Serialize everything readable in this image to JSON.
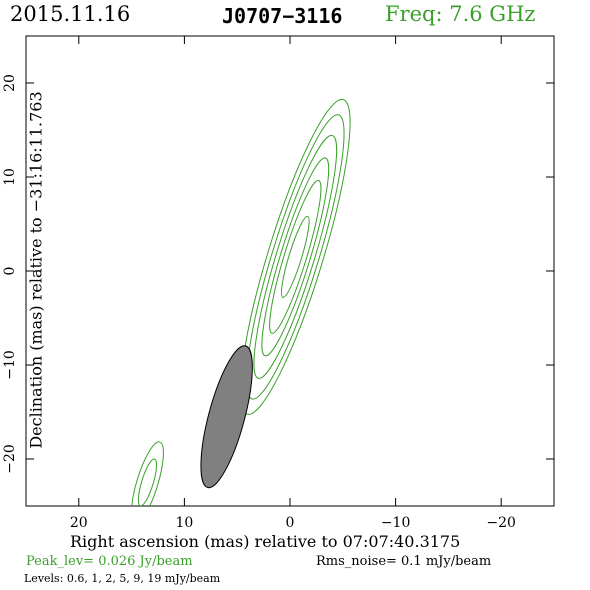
{
  "header": {
    "date": "2015.11.16",
    "source": "J0707−3116",
    "freq": "Freq: 7.6 GHz"
  },
  "axes": {
    "xlabel": "Right ascension (mas) relative to 07:07:40.3175",
    "ylabel": "Declination (mas) relative to −31:16:11.763"
  },
  "footer": {
    "peak": "Peak_lev=  0.026 Jy/beam",
    "rms": "Rms_noise=   0.1 mJy/beam",
    "levels": "Levels: 0.6,   1,   2,   5,   9,  19 mJy/beam"
  },
  "colors": {
    "contour": "#3aa02a",
    "beam": "#808080",
    "text_accent": "#3aa02a"
  },
  "chart_data": {
    "type": "contour",
    "xlim": [
      25,
      -25
    ],
    "ylim": [
      -25,
      25
    ],
    "x_ticks": [
      {
        "v": 20,
        "label": "20"
      },
      {
        "v": 10,
        "label": "10"
      },
      {
        "v": 0,
        "label": "0"
      },
      {
        "v": -10,
        "label": "−10"
      },
      {
        "v": -20,
        "label": "−20"
      }
    ],
    "y_ticks": [
      {
        "v": 20,
        "label": "20"
      },
      {
        "v": 10,
        "label": "10"
      },
      {
        "v": 0,
        "label": "0"
      },
      {
        "v": -10,
        "label": "−10"
      },
      {
        "v": -20,
        "label": "−20"
      }
    ],
    "levels_mJy": [
      0.6,
      1,
      2,
      5,
      9,
      19
    ],
    "main_component": {
      "center": [
        -0.5,
        1.5
      ],
      "position_angle_deg": 17,
      "contours": [
        {
          "level": 0.6,
          "major": 17.5,
          "minor": 2.6
        },
        {
          "level": 1,
          "major": 15.8,
          "minor": 2.2
        },
        {
          "level": 2,
          "major": 13.5,
          "minor": 1.8
        },
        {
          "level": 5,
          "major": 11.0,
          "minor": 1.4
        },
        {
          "level": 9,
          "major": 8.5,
          "minor": 1.05
        },
        {
          "level": 19,
          "major": 4.5,
          "minor": 0.6
        }
      ]
    },
    "secondary_component": {
      "center": [
        13.5,
        -22.5
      ],
      "position_angle_deg": 17,
      "contours": [
        {
          "level": 0.6,
          "major": 4.5,
          "minor": 1.0
        },
        {
          "level": 1,
          "major": 2.6,
          "minor": 0.55
        }
      ]
    },
    "beam": {
      "center": [
        6,
        -15.5
      ],
      "major": 7.8,
      "minor": 1.7,
      "position_angle_deg": 15
    }
  }
}
